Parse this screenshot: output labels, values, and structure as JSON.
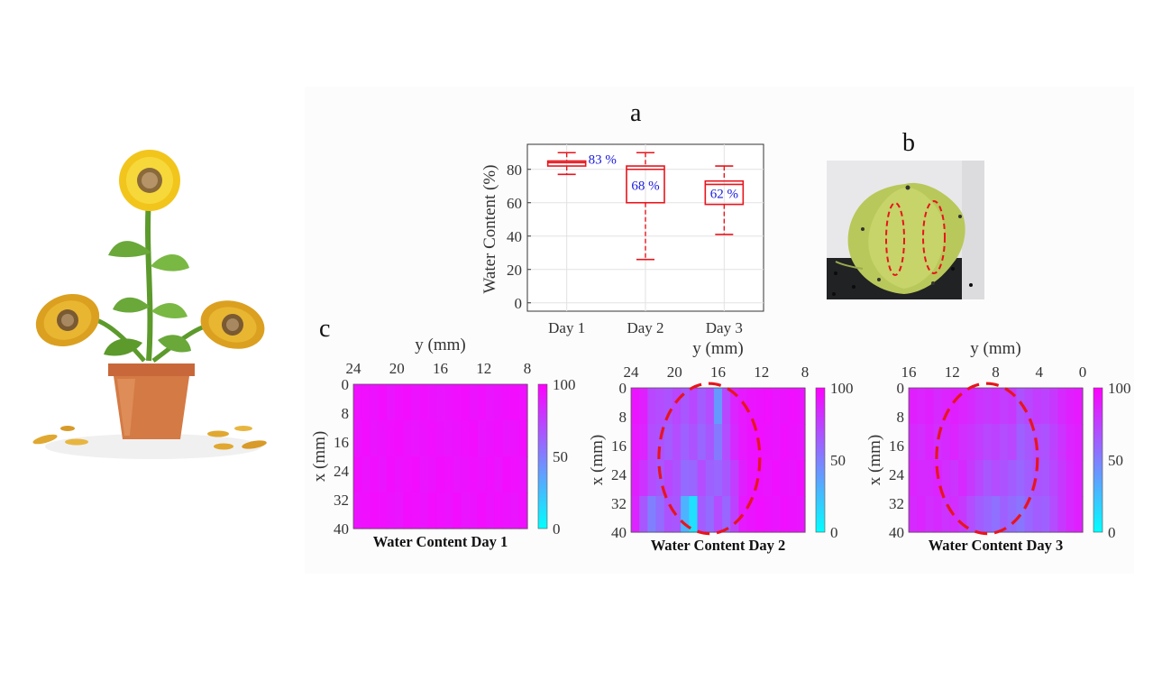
{
  "panels": {
    "a": "a",
    "b": "b",
    "c": "c"
  },
  "chart_data": [
    {
      "type": "box",
      "ylabel": "Water Content  (%)",
      "categories": [
        "Day 1",
        "Day 2",
        "Day 3"
      ],
      "ylim": [
        -5,
        95
      ],
      "yticks": [
        0,
        20,
        40,
        60,
        80
      ],
      "grid": true,
      "boxes": [
        {
          "category": "Day 1",
          "whisker_low": 77,
          "q1": 82,
          "median": 84,
          "q3": 85,
          "whisker_high": 90,
          "label": "83 %"
        },
        {
          "category": "Day 2",
          "whisker_low": 26,
          "q1": 60,
          "median": 80,
          "q3": 82,
          "whisker_high": 90,
          "label": "68 %"
        },
        {
          "category": "Day 3",
          "whisker_low": 41,
          "q1": 59,
          "median": 71,
          "q3": 73,
          "whisker_high": 82,
          "label": "62 %"
        }
      ],
      "colors": {
        "box": "#e8141c",
        "annotation": "#1a1adc"
      }
    },
    {
      "type": "heatmap",
      "title": "Water Content Day 1",
      "xlabel": "y (mm)",
      "ylabel": "x (mm)",
      "x_ticks": [
        "24",
        "20",
        "16",
        "12",
        "8"
      ],
      "y_ticks": [
        "0",
        "8",
        "16",
        "24",
        "32",
        "40"
      ],
      "colorbar_ticks": [
        "100",
        "50",
        "0"
      ],
      "colorbar_range": [
        0,
        100
      ],
      "dry_region_marked": false,
      "rows": [
        [
          94,
          94,
          93,
          95,
          92,
          94,
          95,
          93,
          94,
          93,
          92,
          93,
          94,
          95,
          93,
          94,
          92,
          93,
          94,
          95,
          94
        ],
        [
          93,
          95,
          92,
          93,
          94,
          95,
          93,
          92,
          93,
          94,
          93,
          92,
          93,
          94,
          95,
          92,
          93,
          94,
          92,
          93,
          95
        ],
        [
          95,
          93,
          94,
          92,
          95,
          93,
          94,
          95,
          92,
          93,
          95,
          94,
          92,
          93,
          94,
          93,
          94,
          92,
          95,
          94,
          93
        ],
        [
          93,
          94,
          95,
          94,
          93,
          92,
          95,
          94,
          93,
          95,
          94,
          93,
          95,
          92,
          93,
          95,
          93,
          94,
          93,
          92,
          94
        ]
      ]
    },
    {
      "type": "heatmap",
      "title": "Water Content Day 2",
      "xlabel": "y (mm)",
      "ylabel": "x (mm)",
      "x_ticks": [
        "24",
        "20",
        "16",
        "12",
        "8"
      ],
      "y_ticks": [
        "0",
        "8",
        "16",
        "24",
        "32",
        "40"
      ],
      "colorbar_ticks": [
        "100",
        "50",
        "0"
      ],
      "colorbar_range": [
        0,
        100
      ],
      "dry_region_marked": true,
      "rows": [
        [
          92,
          88,
          72,
          70,
          68,
          72,
          66,
          72,
          64,
          70,
          40,
          72,
          86,
          90,
          92,
          93,
          94,
          92,
          93,
          94,
          93
        ],
        [
          90,
          86,
          70,
          68,
          64,
          70,
          62,
          68,
          60,
          66,
          52,
          70,
          84,
          90,
          93,
          94,
          93,
          92,
          94,
          93,
          92
        ],
        [
          88,
          80,
          70,
          66,
          72,
          68,
          58,
          60,
          70,
          62,
          60,
          66,
          76,
          88,
          92,
          93,
          92,
          94,
          93,
          92,
          94
        ],
        [
          86,
          66,
          50,
          58,
          68,
          66,
          30,
          12,
          64,
          58,
          70,
          60,
          74,
          90,
          92,
          94,
          93,
          92,
          94,
          93,
          92
        ]
      ]
    },
    {
      "type": "heatmap",
      "title": "Water Content Day 3",
      "xlabel": "y (mm)",
      "ylabel": "x (mm)",
      "x_ticks": [
        "16",
        "12",
        "8",
        "4",
        "0"
      ],
      "y_ticks": [
        "0",
        "8",
        "16",
        "24",
        "32",
        "40"
      ],
      "colorbar_ticks": [
        "100",
        "50",
        "0"
      ],
      "colorbar_range": [
        0,
        100
      ],
      "dry_region_marked": true,
      "rows": [
        [
          88,
          86,
          88,
          84,
          86,
          88,
          86,
          84,
          80,
          78,
          80,
          76,
          78,
          68,
          72,
          76,
          74,
          78,
          84,
          88,
          90
        ],
        [
          84,
          82,
          86,
          82,
          84,
          86,
          82,
          80,
          76,
          72,
          74,
          70,
          72,
          62,
          66,
          70,
          68,
          74,
          80,
          86,
          88
        ],
        [
          86,
          84,
          84,
          86,
          82,
          80,
          84,
          78,
          72,
          66,
          70,
          68,
          64,
          60,
          64,
          68,
          66,
          72,
          78,
          84,
          88
        ],
        [
          84,
          86,
          82,
          84,
          80,
          82,
          78,
          70,
          64,
          60,
          56,
          62,
          58,
          54,
          60,
          64,
          62,
          70,
          78,
          84,
          88
        ]
      ]
    }
  ]
}
